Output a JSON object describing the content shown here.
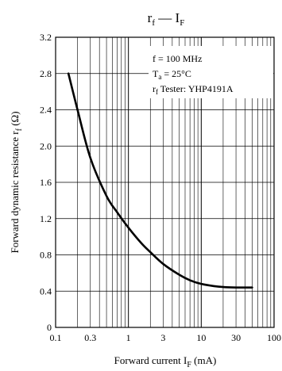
{
  "chart_data": {
    "type": "line",
    "title_main": "r",
    "title_main_sub": "f",
    "title_dash": " — I",
    "title_dash_sub": "F",
    "xlabel_main": "Forward current  I",
    "xlabel_sub": "F",
    "xlabel_unit": " (mA)",
    "ylabel_main": "Forward dynamic resistance  r",
    "ylabel_sub": "f",
    "ylabel_unit": " (Ω)",
    "x_scale": "log",
    "xlim": [
      0.1,
      100
    ],
    "ylim": [
      0,
      3.2
    ],
    "x_tick_labels": [
      {
        "value": 0.1,
        "label": "0.1"
      },
      {
        "value": 0.3,
        "label": "0.3"
      },
      {
        "value": 1,
        "label": "1"
      },
      {
        "value": 3,
        "label": "3"
      },
      {
        "value": 10,
        "label": "10"
      },
      {
        "value": 30,
        "label": "30"
      },
      {
        "value": 100,
        "label": "100"
      }
    ],
    "y_ticks": [
      0,
      0.4,
      0.8,
      1.2,
      1.6,
      2.0,
      2.4,
      2.8,
      3.2
    ],
    "y_tick_labels": [
      "0",
      "0.4",
      "0.8",
      "1.2",
      "1.6",
      "2.0",
      "2.4",
      "2.8",
      "3.2"
    ],
    "grid": true,
    "annotations": {
      "line1": "f = 100 MHz",
      "line2_main": "T",
      "line2_sub": "a",
      "line2_rest": " = 25°C",
      "line3_main": "r",
      "line3_sub": "f",
      "line3_rest": " Tester: YHP4191A"
    },
    "series": [
      {
        "x": [
          0.15,
          0.2,
          0.3,
          0.5,
          0.7,
          1,
          1.5,
          2,
          3,
          5,
          7,
          10,
          15,
          20,
          30,
          50
        ],
        "y": [
          2.8,
          2.4,
          1.87,
          1.45,
          1.27,
          1.1,
          0.93,
          0.83,
          0.7,
          0.58,
          0.52,
          0.48,
          0.455,
          0.445,
          0.44,
          0.44
        ]
      }
    ]
  }
}
